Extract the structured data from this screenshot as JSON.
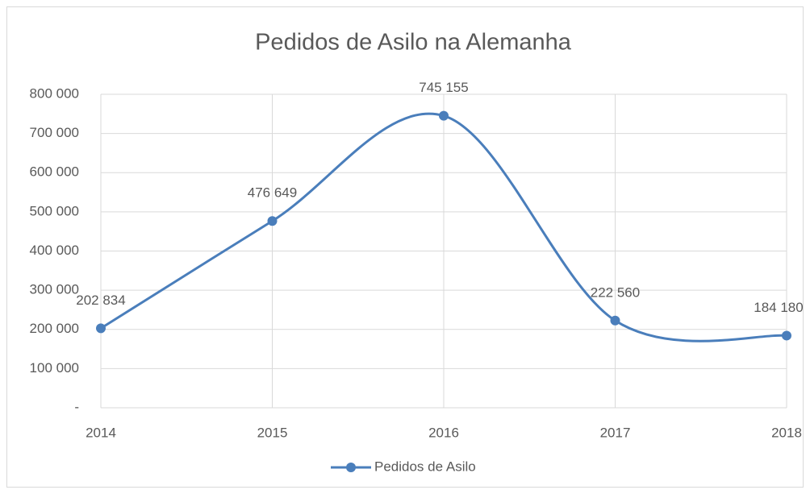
{
  "chart_data": {
    "type": "line",
    "title": "Pedidos de Asilo na Alemanha",
    "categories": [
      "2014",
      "2015",
      "2016",
      "2017",
      "2018"
    ],
    "series": [
      {
        "name": "Pedidos de Asilo",
        "color": "#4a7ebb",
        "values": [
          202834,
          476649,
          745155,
          222560,
          184180
        ],
        "value_labels": [
          "202 834",
          "476 649",
          "745 155",
          "222 560",
          "184 180"
        ]
      }
    ],
    "ylim": [
      0,
      800000
    ],
    "yticks": [
      {
        "value": 0,
        "label": "-"
      },
      {
        "value": 100000,
        "label": "100 000"
      },
      {
        "value": 200000,
        "label": "200 000"
      },
      {
        "value": 300000,
        "label": "300 000"
      },
      {
        "value": 400000,
        "label": "400 000"
      },
      {
        "value": 500000,
        "label": "500 000"
      },
      {
        "value": 600000,
        "label": "600 000"
      },
      {
        "value": 700000,
        "label": "700 000"
      },
      {
        "value": 800000,
        "label": "800 000"
      }
    ],
    "grid": true,
    "smooth": true,
    "legend": "bottom"
  }
}
